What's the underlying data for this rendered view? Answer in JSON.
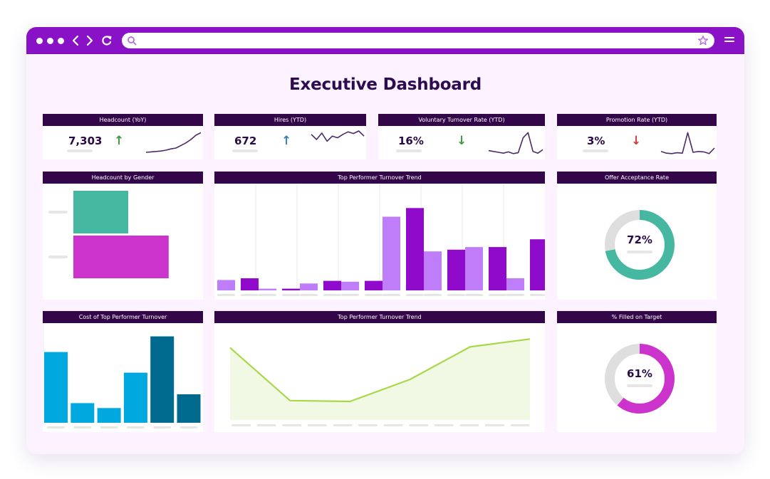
{
  "browser": {
    "address_value": "",
    "icons": [
      "dot-icon",
      "back-icon",
      "forward-icon",
      "refresh-icon",
      "search-icon",
      "star-icon",
      "menu-icon"
    ]
  },
  "dashboard": {
    "title": "Executive Dashboard",
    "kpis": [
      {
        "title": "Headcount (YoY)",
        "value": "7,303",
        "trend": "up",
        "arrow": "↑",
        "arrow_color": "#3f9b3f",
        "spark": [
          10,
          11,
          12,
          13,
          15,
          18,
          20,
          26,
          32,
          40,
          50,
          56
        ]
      },
      {
        "title": "Hires (YTD)",
        "value": "672",
        "trend": "up",
        "arrow": "↑",
        "arrow_color": "#3a7fb8",
        "spark": [
          52,
          40,
          55,
          36,
          48,
          44,
          52,
          58,
          54,
          60,
          48
        ]
      },
      {
        "title": "Voluntary Turnover Rate (YTD)",
        "value": "16%",
        "trend": "down",
        "arrow": "↓",
        "arrow_color": "#3f9b3f",
        "spark": [
          14,
          12,
          10,
          8,
          11,
          7,
          9,
          44,
          56,
          12,
          8,
          16
        ]
      },
      {
        "title": "Promotion Rate (YTD)",
        "value": "3%",
        "trend": "down",
        "arrow": "↓",
        "arrow_color": "#d63b3b",
        "spark": [
          12,
          8,
          7,
          9,
          8,
          56,
          10,
          12,
          11,
          7,
          20
        ]
      }
    ],
    "panels": {
      "headcount_by_gender": {
        "title": "Headcount by Gender"
      },
      "top_performer_bar": {
        "title": "Top Performer Turnover Trend"
      },
      "offer_acceptance": {
        "title": "Offer Acceptance Rate",
        "value_label": "72%",
        "value": 0.72,
        "color": "#46b8a2"
      },
      "cost_turnover": {
        "title": "Cost of Top Performer Turnover"
      },
      "top_performer_area": {
        "title": "Top Performer Turnover Trend"
      },
      "filled_on_target": {
        "title": "% Filled on Target",
        "value_label": "61%",
        "value": 0.61,
        "color": "#cc33cc"
      }
    }
  },
  "chart_data": [
    {
      "type": "bar",
      "title": "Headcount by Gender",
      "orientation": "horizontal",
      "categories": [
        "",
        ""
      ],
      "values": [
        4200,
        7300
      ],
      "colors": [
        "#46b8a2",
        "#cc33cc"
      ],
      "xlim": [
        0,
        12000
      ]
    },
    {
      "type": "bar",
      "title": "Top Performer Turnover Trend",
      "categories": [
        "",
        "",
        "",
        "",
        "",
        "",
        "",
        ""
      ],
      "series": [
        {
          "values": [
            12,
            2,
            8,
            10,
            85,
            45,
            50,
            14
          ],
          "color": "#c07dfa"
        },
        {
          "values": [
            14,
            2,
            11,
            11,
            95,
            47,
            50,
            59
          ],
          "color": "#8f0acb"
        }
      ],
      "ylim": [
        0,
        115
      ]
    },
    {
      "type": "bar",
      "title": "Cost of Top Performer Turnover",
      "categories": [
        "",
        "",
        "",
        "",
        "",
        ""
      ],
      "values": [
        72,
        20,
        15,
        51,
        88,
        29
      ],
      "colors": [
        "#00a8e0",
        "#00a8e0",
        "#00a8e0",
        "#00a8e0",
        "#006a8e",
        "#006a8e"
      ],
      "ylim": [
        0,
        100
      ]
    },
    {
      "type": "area",
      "title": "Top Performer Turnover Trend",
      "x": [
        0,
        1,
        2,
        3,
        4,
        5
      ],
      "values": [
        82,
        22,
        21,
        46,
        83,
        92
      ],
      "color": "#a8d84a",
      "fill": "#f1f8e4",
      "ylim": [
        0,
        110
      ]
    }
  ]
}
